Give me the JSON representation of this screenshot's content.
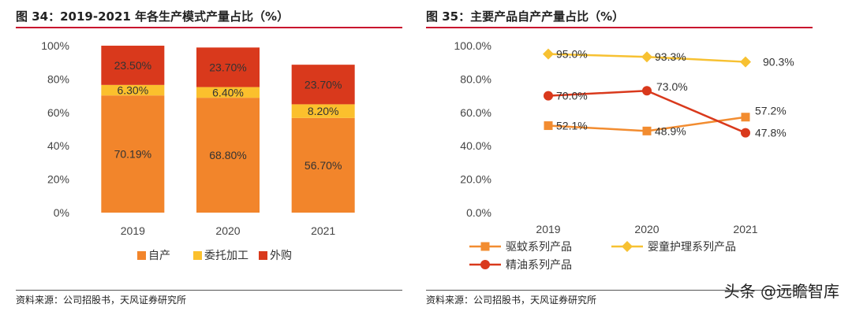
{
  "left": {
    "title": "图 34：2019-2021 年各生产模式产量占比（%）",
    "source": "资料来源：公司招股书，天风证券研究所"
  },
  "right": {
    "title": "图 35：主要产品自产产量占比（%）",
    "source": "资料来源：公司招股书，天风证券研究所"
  },
  "watermark": "头条 @远瞻智库",
  "colors": {
    "orange": "#f2852b",
    "yellow": "#fbc02d",
    "red": "#d9391c",
    "diamond": "#f7c132",
    "line_orange": "#f28c30",
    "line_red": "#d9391c"
  },
  "chart_data": [
    {
      "type": "bar",
      "stacked": true,
      "categories": [
        "2019",
        "2020",
        "2021"
      ],
      "ylim": [
        0,
        100
      ],
      "yticks": [
        "0%",
        "20%",
        "40%",
        "60%",
        "80%",
        "100%"
      ],
      "legend_position": "bottom",
      "series": [
        {
          "name": "自产",
          "values": [
            70.19,
            68.8,
            56.7
          ],
          "labels": [
            "70.19%",
            "68.80%",
            "56.70%"
          ],
          "color": "#f2852b"
        },
        {
          "name": "委托加工",
          "values": [
            6.3,
            6.4,
            8.2
          ],
          "labels": [
            "6.30%",
            "6.40%",
            "8.20%"
          ],
          "color": "#fbc02d"
        },
        {
          "name": "外购",
          "values": [
            23.5,
            23.7,
            23.7
          ],
          "labels": [
            "23.50%",
            "23.70%",
            "23.70%"
          ],
          "color": "#d9391c"
        }
      ]
    },
    {
      "type": "line",
      "categories": [
        "2019",
        "2020",
        "2021"
      ],
      "ylim": [
        0,
        100
      ],
      "yticks": [
        "0.0%",
        "20.0%",
        "40.0%",
        "60.0%",
        "80.0%",
        "100.0%"
      ],
      "legend_position": "bottom",
      "series": [
        {
          "name": "驱蚊系列产品",
          "values": [
            52.1,
            48.9,
            57.2
          ],
          "labels": [
            "52.1%",
            "48.9%",
            "57.2%"
          ],
          "marker": "square",
          "color": "#f28c30"
        },
        {
          "name": "婴童护理系列产品",
          "values": [
            95.0,
            93.3,
            90.3
          ],
          "labels": [
            "95.0%",
            "93.3%",
            "90.3%"
          ],
          "marker": "diamond",
          "color": "#f7c132"
        },
        {
          "name": "精油系列产品",
          "values": [
            70.0,
            73.0,
            47.8
          ],
          "labels": [
            "70.0%",
            "73.0%",
            "47.8%"
          ],
          "marker": "circle",
          "color": "#d9391c"
        }
      ]
    }
  ]
}
